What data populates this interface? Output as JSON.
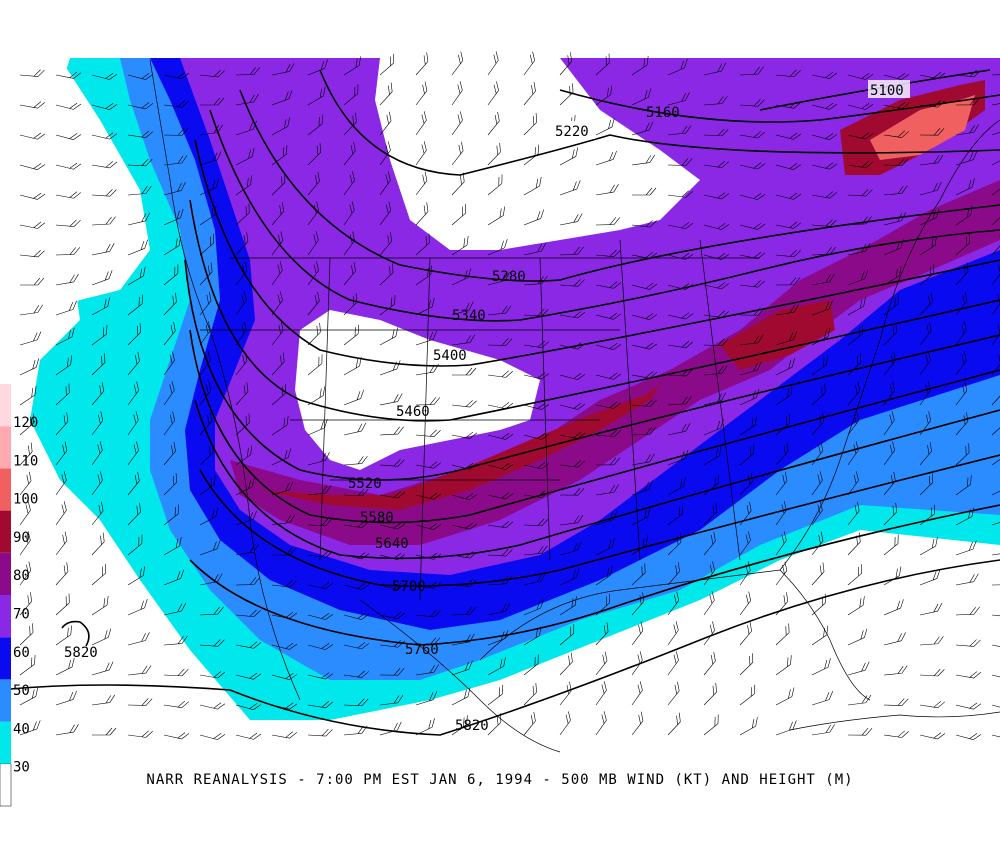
{
  "caption": "NARR REANALYSIS - 7:00 PM EST JAN 6, 1994 - 500 MB WIND (KT) AND HEIGHT (M)",
  "legend": {
    "labels": [
      "120",
      "110",
      "100",
      "90",
      "80",
      "70",
      "60",
      "50",
      "40",
      "30"
    ],
    "bands": [
      {
        "min": 30,
        "max": 40,
        "color": "#00e8ec"
      },
      {
        "min": 40,
        "max": 50,
        "color": "#2a8cff"
      },
      {
        "min": 50,
        "max": 60,
        "color": "#0a0af0"
      },
      {
        "min": 60,
        "max": 70,
        "color": "#8a28e6"
      },
      {
        "min": 70,
        "max": 80,
        "color": "#8a0a8a"
      },
      {
        "min": 80,
        "max": 90,
        "color": "#a00a30"
      },
      {
        "min": 90,
        "max": 100,
        "color": "#f06060"
      },
      {
        "min": 100,
        "max": 110,
        "color": "#ffaab0"
      },
      {
        "min": 110,
        "max": 120,
        "color": "#ffd8e0"
      }
    ]
  },
  "contours": {
    "labels": [
      "5100",
      "5160",
      "5220",
      "5280",
      "5340",
      "5400",
      "5460",
      "5520",
      "5580",
      "5640",
      "5700",
      "5760",
      "5820",
      "5820"
    ]
  },
  "colors": {
    "c30": "#00e8ec",
    "c40": "#2a8cff",
    "c50": "#0a0af0",
    "c60": "#8a28e6",
    "c70": "#8a0a8a",
    "c80": "#a00a30",
    "c90": "#f06060",
    "c100": "#ffaab0"
  }
}
